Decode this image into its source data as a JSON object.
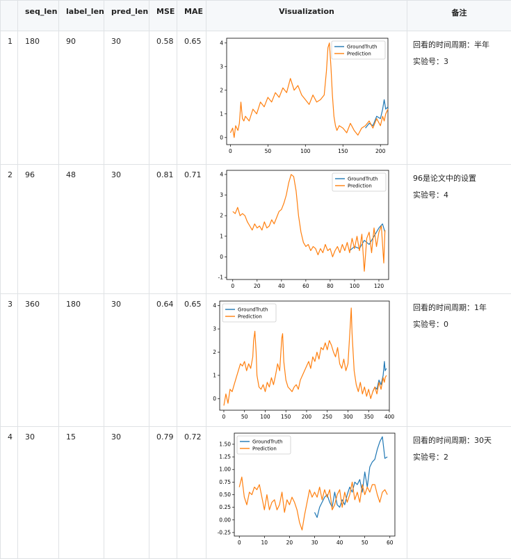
{
  "table": {
    "headers": [
      "",
      "seq_len",
      "label_len",
      "pred_len",
      "MSE",
      "MAE",
      "Visualization",
      "备注"
    ],
    "rows": [
      {
        "idx": "1",
        "seq_len": "180",
        "label_len": "90",
        "pred_len": "30",
        "mse": "0.58",
        "mae": "0.65",
        "note": [
          "回看的时间周期：半年",
          "实验号：3"
        ]
      },
      {
        "idx": "2",
        "seq_len": "96",
        "label_len": "48",
        "pred_len": "30",
        "mse": "0.81",
        "mae": "0.71",
        "note": [
          "96是论文中的设置",
          "实验号：4"
        ]
      },
      {
        "idx": "3",
        "seq_len": "360",
        "label_len": "180",
        "pred_len": "30",
        "mse": "0.64",
        "mae": "0.65",
        "note": [
          "回看的时间周期：1年",
          "实验号：0"
        ]
      },
      {
        "idx": "4",
        "seq_len": "30",
        "label_len": "15",
        "pred_len": "30",
        "mse": "0.79",
        "mae": "0.72",
        "note": [
          "回看的时间周期：30天",
          "实验号：2"
        ]
      }
    ]
  },
  "colors": {
    "groundtruth": "#1f77b4",
    "prediction": "#ff7f0e"
  },
  "chart_data": [
    {
      "type": "line",
      "legend": [
        "GroundTruth",
        "Prediction"
      ],
      "legend_loc": "upper-right",
      "xlim": [
        -5,
        210
      ],
      "ylim": [
        -0.3,
        4.2
      ],
      "xticks": [
        0,
        50,
        100,
        150,
        200
      ],
      "yticks": [
        0,
        1,
        2,
        3,
        4
      ],
      "series": [
        {
          "name": "GroundTruth",
          "x": [
            180,
            185,
            190,
            195,
            200,
            203,
            205,
            207,
            210
          ],
          "y": [
            0.4,
            0.6,
            0.5,
            0.9,
            0.8,
            1.2,
            1.6,
            1.2,
            1.3
          ]
        },
        {
          "name": "Prediction",
          "x": [
            0,
            3,
            5,
            7,
            10,
            12,
            14,
            16,
            18,
            20,
            25,
            30,
            35,
            40,
            45,
            50,
            55,
            60,
            65,
            70,
            75,
            80,
            85,
            90,
            95,
            100,
            105,
            110,
            115,
            120,
            125,
            128,
            130,
            132,
            134,
            136,
            138,
            140,
            142,
            145,
            150,
            155,
            160,
            165,
            170,
            175,
            180,
            185,
            190,
            195,
            200,
            203,
            205,
            207,
            210
          ],
          "y": [
            0.2,
            0.4,
            0.0,
            0.5,
            0.3,
            0.6,
            1.5,
            0.8,
            0.7,
            0.9,
            0.7,
            1.2,
            1.0,
            1.5,
            1.3,
            1.7,
            1.5,
            1.9,
            1.7,
            2.1,
            1.9,
            2.5,
            2.0,
            2.2,
            1.8,
            1.6,
            1.4,
            1.8,
            1.5,
            1.6,
            1.8,
            2.8,
            3.8,
            4.0,
            3.0,
            1.8,
            0.9,
            0.5,
            0.3,
            0.5,
            0.4,
            0.2,
            0.6,
            0.3,
            0.1,
            0.4,
            0.5,
            0.7,
            0.4,
            0.8,
            0.5,
            0.9,
            0.7,
            1.0,
            1.2
          ]
        }
      ]
    },
    {
      "type": "line",
      "legend": [
        "GroundTruth",
        "Prediction"
      ],
      "legend_loc": "upper-right",
      "xlim": [
        -5,
        128
      ],
      "ylim": [
        -1.1,
        4.2
      ],
      "xticks": [
        0,
        20,
        40,
        60,
        80,
        100,
        120
      ],
      "yticks": [
        -1,
        0,
        1,
        2,
        3,
        4
      ],
      "series": [
        {
          "name": "GroundTruth",
          "x": [
            96,
            100,
            104,
            108,
            112,
            116,
            120,
            123,
            125
          ],
          "y": [
            0.3,
            0.5,
            0.4,
            0.8,
            0.6,
            1.0,
            1.4,
            1.6,
            1.2
          ]
        },
        {
          "name": "Prediction",
          "x": [
            0,
            2,
            4,
            6,
            8,
            10,
            12,
            14,
            16,
            18,
            20,
            22,
            24,
            26,
            28,
            30,
            32,
            34,
            36,
            38,
            40,
            42,
            44,
            46,
            48,
            50,
            52,
            54,
            56,
            58,
            60,
            62,
            64,
            66,
            68,
            70,
            72,
            74,
            76,
            78,
            80,
            82,
            84,
            86,
            88,
            90,
            92,
            94,
            96,
            98,
            100,
            102,
            104,
            106,
            108,
            110,
            112,
            114,
            116,
            118,
            120,
            122,
            124,
            125
          ],
          "y": [
            2.2,
            2.1,
            2.4,
            2.0,
            2.1,
            2.0,
            1.7,
            1.5,
            1.3,
            1.6,
            1.4,
            1.5,
            1.3,
            1.7,
            1.4,
            1.5,
            1.8,
            1.6,
            1.9,
            2.2,
            2.3,
            2.6,
            3.0,
            3.6,
            4.0,
            3.9,
            3.2,
            2.0,
            1.2,
            0.7,
            0.5,
            0.6,
            0.3,
            0.5,
            0.4,
            0.1,
            0.4,
            0.2,
            0.6,
            0.3,
            0.4,
            0.0,
            0.3,
            0.5,
            0.2,
            0.6,
            0.3,
            0.7,
            0.2,
            0.9,
            0.4,
            1.0,
            0.3,
            1.1,
            -0.7,
            0.9,
            1.2,
            0.2,
            1.4,
            0.5,
            1.2,
            1.5,
            -0.3,
            1.3
          ]
        }
      ]
    },
    {
      "type": "line",
      "legend": [
        "GroundTruth",
        "Prediction"
      ],
      "legend_loc": "upper-left",
      "xlim": [
        -10,
        400
      ],
      "ylim": [
        -0.5,
        4.2
      ],
      "xticks": [
        0,
        50,
        100,
        150,
        200,
        250,
        300,
        350,
        400
      ],
      "yticks": [
        0,
        1,
        2,
        3,
        4
      ],
      "series": [
        {
          "name": "GroundTruth",
          "x": [
            360,
            365,
            370,
            375,
            380,
            385,
            388,
            390,
            393
          ],
          "y": [
            0.3,
            0.5,
            0.4,
            0.8,
            0.6,
            1.0,
            1.6,
            1.2,
            1.3
          ]
        },
        {
          "name": "Prediction",
          "x": [
            0,
            5,
            10,
            15,
            20,
            25,
            30,
            35,
            40,
            45,
            50,
            55,
            60,
            65,
            70,
            72,
            75,
            78,
            80,
            85,
            90,
            95,
            100,
            105,
            110,
            115,
            120,
            125,
            130,
            135,
            140,
            142,
            145,
            150,
            155,
            160,
            165,
            170,
            175,
            180,
            185,
            190,
            195,
            200,
            205,
            210,
            215,
            220,
            225,
            230,
            235,
            240,
            245,
            250,
            255,
            260,
            265,
            270,
            275,
            280,
            285,
            290,
            295,
            300,
            305,
            308,
            310,
            315,
            320,
            325,
            330,
            335,
            340,
            345,
            350,
            355,
            360,
            365,
            370,
            375,
            380,
            385,
            388,
            390,
            393
          ],
          "y": [
            -0.3,
            0.2,
            -0.2,
            0.4,
            0.3,
            0.6,
            0.9,
            1.2,
            1.5,
            1.4,
            1.6,
            1.2,
            1.5,
            1.3,
            1.8,
            2.5,
            2.9,
            2.0,
            1.0,
            0.5,
            0.4,
            0.6,
            0.3,
            0.7,
            0.5,
            0.9,
            0.6,
            1.0,
            1.5,
            1.2,
            2.6,
            2.8,
            1.6,
            0.8,
            0.5,
            0.4,
            0.3,
            0.5,
            0.6,
            0.4,
            0.8,
            1.0,
            1.2,
            1.4,
            1.6,
            1.3,
            1.8,
            1.6,
            2.0,
            1.7,
            2.2,
            2.1,
            2.4,
            2.1,
            2.5,
            2.3,
            2.0,
            1.8,
            2.2,
            1.5,
            1.3,
            1.7,
            1.2,
            1.5,
            3.0,
            3.9,
            2.8,
            1.2,
            0.6,
            0.3,
            0.7,
            0.2,
            0.5,
            0.1,
            0.4,
            0.0,
            0.3,
            0.5,
            0.2,
            0.7,
            0.4,
            0.9,
            0.7,
            0.9,
            1.0
          ]
        }
      ]
    },
    {
      "type": "line",
      "legend": [
        "GroundTruth",
        "Prediction"
      ],
      "legend_loc": "upper-left",
      "xlim": [
        -2,
        62
      ],
      "ylim": [
        -0.32,
        1.72
      ],
      "xticks": [
        0,
        10,
        20,
        30,
        40,
        50,
        60
      ],
      "yticks": [
        -0.25,
        0.0,
        0.25,
        0.5,
        0.75,
        1.0,
        1.25,
        1.5
      ],
      "series": [
        {
          "name": "GroundTruth",
          "x": [
            30,
            31,
            32,
            33,
            34,
            35,
            36,
            37,
            38,
            39,
            40,
            41,
            42,
            43,
            44,
            45,
            46,
            47,
            48,
            49,
            50,
            51,
            52,
            53,
            54,
            55,
            56,
            57,
            58,
            59
          ],
          "y": [
            0.15,
            0.05,
            0.25,
            0.35,
            0.45,
            0.5,
            0.35,
            0.25,
            0.55,
            0.3,
            0.25,
            0.4,
            0.3,
            0.5,
            0.65,
            0.55,
            0.75,
            0.7,
            0.8,
            0.55,
            0.95,
            0.65,
            1.05,
            1.15,
            1.2,
            1.4,
            1.55,
            1.65,
            1.22,
            1.25
          ]
        },
        {
          "name": "Prediction",
          "x": [
            0,
            1,
            2,
            3,
            4,
            5,
            6,
            7,
            8,
            9,
            10,
            11,
            12,
            13,
            14,
            15,
            16,
            17,
            18,
            19,
            20,
            21,
            22,
            23,
            24,
            25,
            26,
            27,
            28,
            29,
            30,
            31,
            32,
            33,
            34,
            35,
            36,
            37,
            38,
            39,
            40,
            41,
            42,
            43,
            44,
            45,
            46,
            47,
            48,
            49,
            50,
            51,
            52,
            53,
            54,
            55,
            56,
            57,
            58,
            59
          ],
          "y": [
            0.65,
            0.85,
            0.45,
            0.3,
            0.55,
            0.5,
            0.65,
            0.6,
            0.7,
            0.45,
            0.2,
            0.5,
            0.2,
            0.35,
            0.4,
            0.2,
            0.3,
            0.55,
            0.15,
            0.4,
            0.3,
            0.45,
            0.35,
            0.2,
            -0.05,
            -0.2,
            0.1,
            0.35,
            0.6,
            0.45,
            0.55,
            0.45,
            0.65,
            0.4,
            0.6,
            0.45,
            0.6,
            0.2,
            0.3,
            0.5,
            0.6,
            0.25,
            0.55,
            0.35,
            0.5,
            0.75,
            0.4,
            0.55,
            0.35,
            0.7,
            0.5,
            0.65,
            0.55,
            0.7,
            0.7,
            0.5,
            0.35,
            0.55,
            0.6,
            0.5
          ]
        }
      ]
    }
  ]
}
